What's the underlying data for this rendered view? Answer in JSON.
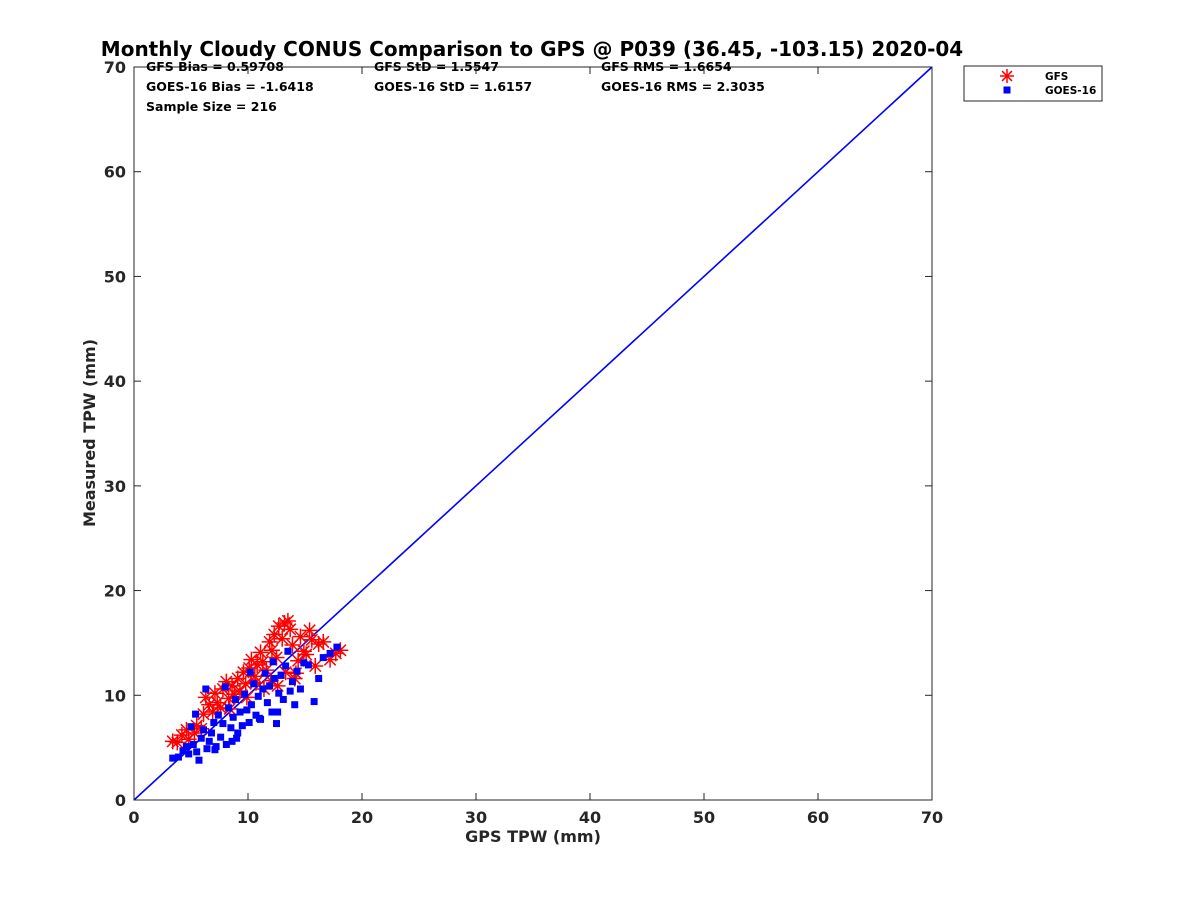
{
  "chart_data": {
    "type": "scatter",
    "title": "Monthly Cloudy CONUS Comparison to GPS @ P039 (36.45, -103.15) 2020-04",
    "xlabel": "GPS TPW (mm)",
    "ylabel": "Measured TPW (mm)",
    "xlim": [
      0,
      70
    ],
    "ylim": [
      0,
      70
    ],
    "xticks": [
      "0",
      "10",
      "20",
      "30",
      "40",
      "50",
      "60",
      "70"
    ],
    "yticks": [
      "0",
      "10",
      "20",
      "30",
      "40",
      "50",
      "60",
      "70"
    ],
    "grid": false,
    "legend_position": "top-right",
    "stats": [
      [
        "GFS Bias = 0.59708",
        "GFS StD = 1.5547",
        "GFS RMS = 1.6654"
      ],
      [
        "GOES-16 Bias = -1.6418",
        "GOES-16 StD = 1.6157",
        "GOES-16 RMS = 2.3035"
      ],
      [
        "Sample Size = 216"
      ]
    ],
    "reference_line": {
      "x": [
        0,
        70
      ],
      "y": [
        0,
        70
      ],
      "color": "#0000ff"
    },
    "series": [
      {
        "name": "GFS",
        "marker": "asterisk",
        "color": "#ff0000",
        "points": [
          [
            3.4,
            5.6
          ],
          [
            3.8,
            5.5
          ],
          [
            4.2,
            6.2
          ],
          [
            4.6,
            6.7
          ],
          [
            4.8,
            5.8
          ],
          [
            5.3,
            6.4
          ],
          [
            5.5,
            7.1
          ],
          [
            5.9,
            6.8
          ],
          [
            6.1,
            8.2
          ],
          [
            6.3,
            9.8
          ],
          [
            6.6,
            9.1
          ],
          [
            6.9,
            8.4
          ],
          [
            7.1,
            10.2
          ],
          [
            7.3,
            9.3
          ],
          [
            7.6,
            8.8
          ],
          [
            7.8,
            10.6
          ],
          [
            8.1,
            11.3
          ],
          [
            8.3,
            9.7
          ],
          [
            8.6,
            10.9
          ],
          [
            8.8,
            10.1
          ],
          [
            9.1,
            11.6
          ],
          [
            9.3,
            10.4
          ],
          [
            9.6,
            12.2
          ],
          [
            9.8,
            11.1
          ],
          [
            10.1,
            12.6
          ],
          [
            10.3,
            13.4
          ],
          [
            10.6,
            11.8
          ],
          [
            10.8,
            12.9
          ],
          [
            11.1,
            14.1
          ],
          [
            11.3,
            13.2
          ],
          [
            11.6,
            12.4
          ],
          [
            11.9,
            15.1
          ],
          [
            12.1,
            14.3
          ],
          [
            12.3,
            15.8
          ],
          [
            12.5,
            13.6
          ],
          [
            12.7,
            16.6
          ],
          [
            13.0,
            15.4
          ],
          [
            13.2,
            16.9
          ],
          [
            13.5,
            17.1
          ],
          [
            13.7,
            16.3
          ],
          [
            13.9,
            14.8
          ],
          [
            14.2,
            12.1
          ],
          [
            14.4,
            13.3
          ],
          [
            14.6,
            15.6
          ],
          [
            14.9,
            14.2
          ],
          [
            15.1,
            13.9
          ],
          [
            15.4,
            16.2
          ],
          [
            15.6,
            15.3
          ],
          [
            15.9,
            12.8
          ],
          [
            16.2,
            14.9
          ],
          [
            16.6,
            15.1
          ],
          [
            17.2,
            13.4
          ],
          [
            17.7,
            14.0
          ],
          [
            18.1,
            14.3
          ],
          [
            12.6,
            10.9
          ],
          [
            14.1,
            11.6
          ],
          [
            11.4,
            10.6
          ],
          [
            9.9,
            9.8
          ],
          [
            10.7,
            11.2
          ],
          [
            8.4,
            8.7
          ],
          [
            13.3,
            12.2
          ],
          [
            12.0,
            11.4
          ]
        ]
      },
      {
        "name": "GOES-16",
        "marker": "square",
        "color": "#0000ff",
        "points": [
          [
            3.4,
            4.0
          ],
          [
            3.9,
            4.1
          ],
          [
            4.3,
            4.7
          ],
          [
            4.6,
            5.1
          ],
          [
            4.8,
            4.4
          ],
          [
            5.0,
            7.0
          ],
          [
            5.2,
            5.3
          ],
          [
            5.5,
            4.6
          ],
          [
            5.7,
            3.8
          ],
          [
            5.9,
            5.9
          ],
          [
            6.1,
            6.7
          ],
          [
            6.3,
            10.6
          ],
          [
            6.4,
            4.9
          ],
          [
            6.6,
            5.6
          ],
          [
            6.8,
            6.4
          ],
          [
            7.0,
            7.4
          ],
          [
            7.2,
            5.1
          ],
          [
            7.4,
            8.1
          ],
          [
            7.6,
            6.0
          ],
          [
            7.8,
            7.3
          ],
          [
            8.0,
            10.8
          ],
          [
            8.1,
            5.3
          ],
          [
            8.3,
            8.8
          ],
          [
            8.5,
            6.9
          ],
          [
            8.7,
            7.9
          ],
          [
            8.9,
            9.6
          ],
          [
            9.1,
            6.4
          ],
          [
            9.3,
            8.4
          ],
          [
            9.5,
            7.1
          ],
          [
            9.7,
            10.1
          ],
          [
            9.9,
            8.6
          ],
          [
            10.1,
            7.4
          ],
          [
            10.3,
            9.1
          ],
          [
            10.5,
            11.1
          ],
          [
            10.7,
            8.1
          ],
          [
            10.9,
            9.9
          ],
          [
            11.1,
            7.7
          ],
          [
            11.3,
            10.6
          ],
          [
            11.5,
            12.1
          ],
          [
            11.7,
            9.3
          ],
          [
            11.9,
            10.9
          ],
          [
            12.1,
            8.4
          ],
          [
            12.3,
            11.6
          ],
          [
            12.5,
            7.3
          ],
          [
            12.7,
            10.2
          ],
          [
            12.9,
            11.9
          ],
          [
            13.1,
            9.6
          ],
          [
            13.3,
            12.8
          ],
          [
            13.5,
            14.2
          ],
          [
            13.7,
            10.4
          ],
          [
            13.9,
            11.3
          ],
          [
            14.1,
            9.1
          ],
          [
            14.3,
            12.3
          ],
          [
            14.6,
            10.6
          ],
          [
            14.9,
            13.1
          ],
          [
            15.3,
            12.9
          ],
          [
            15.8,
            9.4
          ],
          [
            16.2,
            11.6
          ],
          [
            16.6,
            13.6
          ],
          [
            17.2,
            14.0
          ],
          [
            17.8,
            14.6
          ],
          [
            10.2,
            12.2
          ],
          [
            12.2,
            13.2
          ],
          [
            8.6,
            5.6
          ],
          [
            7.1,
            4.8
          ],
          [
            5.4,
            8.2
          ],
          [
            9.0,
            5.9
          ],
          [
            11.0,
            7.8
          ],
          [
            12.6,
            8.4
          ]
        ]
      }
    ]
  }
}
